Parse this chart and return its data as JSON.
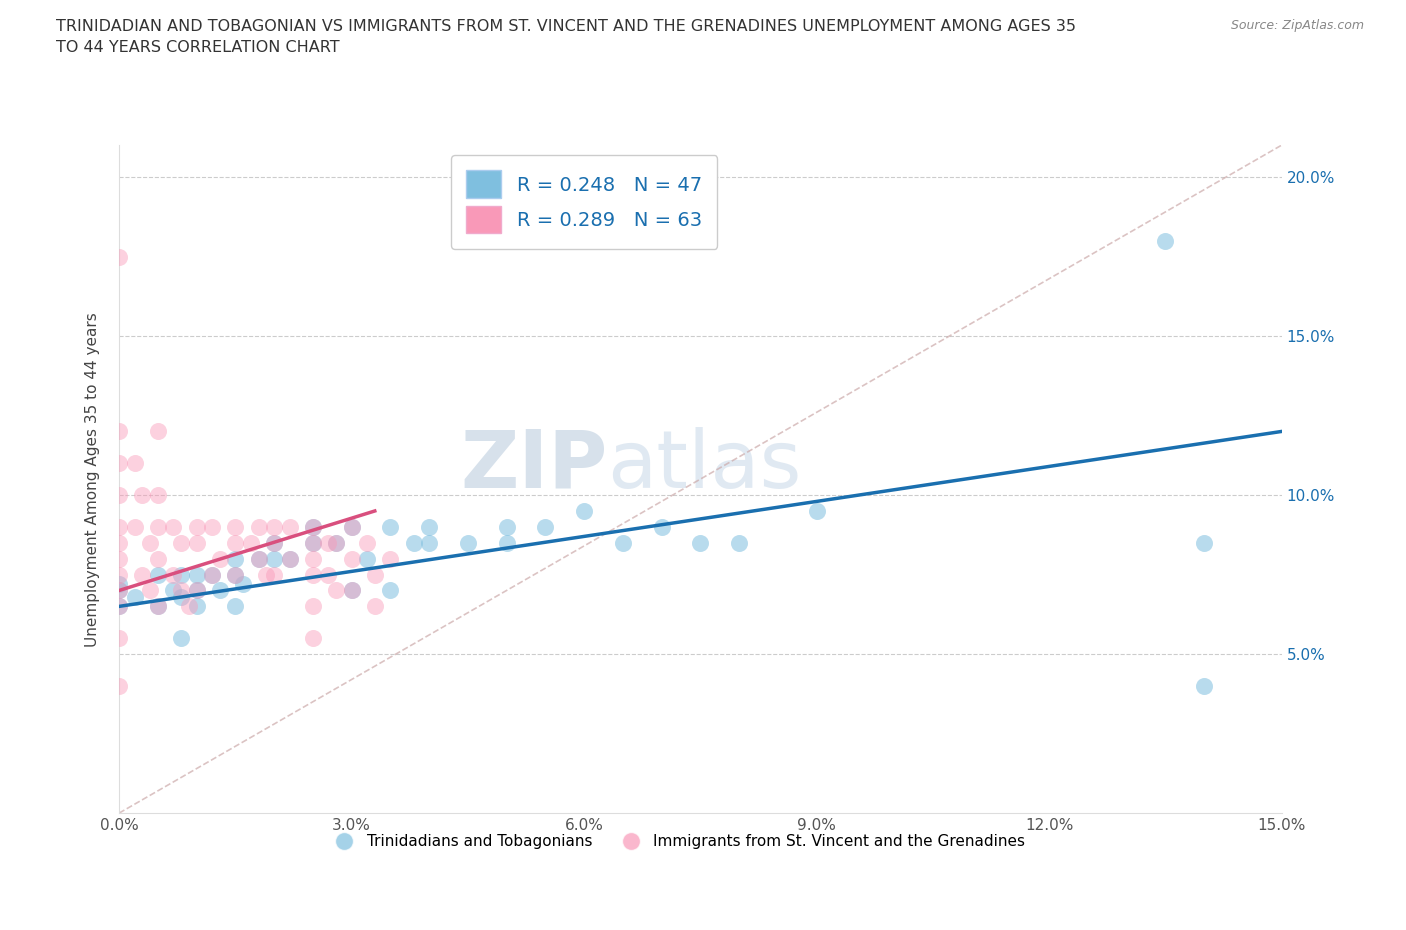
{
  "title": "TRINIDADIAN AND TOBAGONIAN VS IMMIGRANTS FROM ST. VINCENT AND THE GRENADINES UNEMPLOYMENT AMONG AGES 35\nTO 44 YEARS CORRELATION CHART",
  "source": "Source: ZipAtlas.com",
  "ylabel_label": "Unemployment Among Ages 35 to 44 years",
  "xmin": 0.0,
  "xmax": 0.15,
  "ymin": 0.0,
  "ymax": 0.21,
  "xticks": [
    0.0,
    0.03,
    0.06,
    0.09,
    0.12,
    0.15
  ],
  "xtick_labels": [
    "0.0%",
    "3.0%",
    "6.0%",
    "9.0%",
    "12.0%",
    "15.0%"
  ],
  "yticks": [
    0.0,
    0.05,
    0.1,
    0.15,
    0.2
  ],
  "ytick_labels": [
    "",
    "5.0%",
    "10.0%",
    "15.0%",
    "20.0%"
  ],
  "blue_color": "#7fbfdf",
  "pink_color": "#f999b8",
  "blue_line_color": "#1a6faf",
  "pink_line_color": "#d94f7e",
  "R_blue": 0.248,
  "N_blue": 47,
  "R_pink": 0.289,
  "N_pink": 63,
  "legend_label_blue": "Trinidadians and Tobagonians",
  "legend_label_pink": "Immigrants from St. Vincent and the Grenadines",
  "watermark_zip": "ZIP",
  "watermark_atlas": "atlas",
  "blue_scatter_x": [
    0.0,
    0.0,
    0.0,
    0.002,
    0.005,
    0.005,
    0.007,
    0.008,
    0.008,
    0.01,
    0.01,
    0.01,
    0.012,
    0.013,
    0.015,
    0.015,
    0.015,
    0.016,
    0.018,
    0.02,
    0.02,
    0.022,
    0.025,
    0.025,
    0.028,
    0.03,
    0.03,
    0.032,
    0.035,
    0.035,
    0.038,
    0.04,
    0.04,
    0.045,
    0.05,
    0.05,
    0.055,
    0.06,
    0.065,
    0.07,
    0.075,
    0.08,
    0.09,
    0.135,
    0.14,
    0.14,
    0.008
  ],
  "blue_scatter_y": [
    0.065,
    0.07,
    0.072,
    0.068,
    0.065,
    0.075,
    0.07,
    0.068,
    0.075,
    0.065,
    0.07,
    0.075,
    0.075,
    0.07,
    0.075,
    0.08,
    0.065,
    0.072,
    0.08,
    0.08,
    0.085,
    0.08,
    0.085,
    0.09,
    0.085,
    0.09,
    0.07,
    0.08,
    0.09,
    0.07,
    0.085,
    0.09,
    0.085,
    0.085,
    0.085,
    0.09,
    0.09,
    0.095,
    0.085,
    0.09,
    0.085,
    0.085,
    0.095,
    0.18,
    0.085,
    0.04,
    0.055
  ],
  "pink_scatter_x": [
    0.0,
    0.0,
    0.0,
    0.0,
    0.0,
    0.0,
    0.0,
    0.0,
    0.0,
    0.0,
    0.0,
    0.0,
    0.002,
    0.002,
    0.003,
    0.003,
    0.004,
    0.004,
    0.005,
    0.005,
    0.005,
    0.005,
    0.005,
    0.007,
    0.007,
    0.008,
    0.008,
    0.009,
    0.01,
    0.01,
    0.01,
    0.012,
    0.012,
    0.013,
    0.015,
    0.015,
    0.015,
    0.017,
    0.018,
    0.018,
    0.019,
    0.02,
    0.02,
    0.02,
    0.022,
    0.022,
    0.025,
    0.025,
    0.025,
    0.025,
    0.025,
    0.025,
    0.027,
    0.027,
    0.028,
    0.028,
    0.03,
    0.03,
    0.03,
    0.032,
    0.033,
    0.033,
    0.035
  ],
  "pink_scatter_y": [
    0.175,
    0.12,
    0.11,
    0.1,
    0.09,
    0.085,
    0.08,
    0.075,
    0.07,
    0.065,
    0.055,
    0.04,
    0.11,
    0.09,
    0.1,
    0.075,
    0.085,
    0.07,
    0.12,
    0.1,
    0.09,
    0.08,
    0.065,
    0.09,
    0.075,
    0.085,
    0.07,
    0.065,
    0.09,
    0.085,
    0.07,
    0.09,
    0.075,
    0.08,
    0.09,
    0.085,
    0.075,
    0.085,
    0.09,
    0.08,
    0.075,
    0.09,
    0.085,
    0.075,
    0.09,
    0.08,
    0.09,
    0.085,
    0.08,
    0.075,
    0.065,
    0.055,
    0.085,
    0.075,
    0.085,
    0.07,
    0.09,
    0.08,
    0.07,
    0.085,
    0.075,
    0.065,
    0.08
  ]
}
